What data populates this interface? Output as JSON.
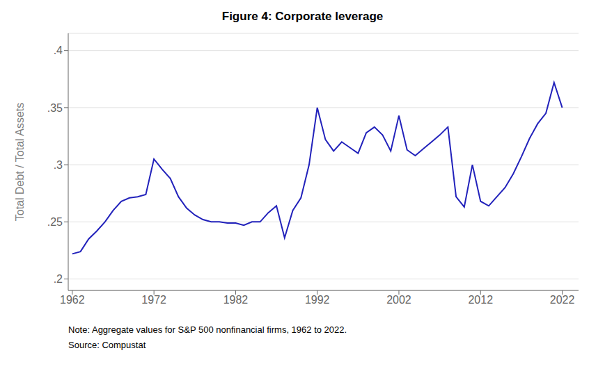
{
  "chart_data": {
    "type": "line",
    "title": "Figure 4: Corporate leverage",
    "y_label": "Total Debt / Total Assets",
    "annotations": [
      "Note: Aggregate values for S&P 500 nonfinancial firms, 1962 to 2022.",
      "Source: Compustat"
    ],
    "color": "#2222BB",
    "grid": true,
    "xlim": [
      1961.5,
      2024
    ],
    "ylim": [
      0.19,
      0.415
    ],
    "xticks": [
      1962,
      1972,
      1982,
      1992,
      2002,
      2012,
      2022
    ],
    "yticks": [
      {
        "value": 0.2,
        "label": ".2"
      },
      {
        "value": 0.25,
        "label": ".25"
      },
      {
        "value": 0.3,
        "label": ".3"
      },
      {
        "value": 0.35,
        "label": ".35"
      },
      {
        "value": 0.4,
        "label": ".4"
      }
    ],
    "x": [
      1962,
      1963,
      1964,
      1965,
      1966,
      1967,
      1968,
      1969,
      1970,
      1971,
      1972,
      1973,
      1974,
      1975,
      1976,
      1977,
      1978,
      1979,
      1980,
      1981,
      1982,
      1983,
      1984,
      1985,
      1986,
      1987,
      1988,
      1989,
      1990,
      1991,
      1992,
      1993,
      1994,
      1995,
      1996,
      1997,
      1998,
      1999,
      2000,
      2001,
      2002,
      2003,
      2004,
      2005,
      2006,
      2007,
      2008,
      2009,
      2010,
      2011,
      2012,
      2013,
      2014,
      2015,
      2016,
      2017,
      2018,
      2019,
      2020,
      2021,
      2022
    ],
    "values": [
      0.222,
      0.224,
      0.235,
      0.242,
      0.25,
      0.26,
      0.268,
      0.271,
      0.272,
      0.274,
      0.305,
      0.296,
      0.288,
      0.272,
      0.262,
      0.256,
      0.252,
      0.25,
      0.25,
      0.249,
      0.249,
      0.247,
      0.25,
      0.25,
      0.258,
      0.264,
      0.236,
      0.26,
      0.271,
      0.3,
      0.35,
      0.322,
      0.312,
      0.32,
      0.315,
      0.31,
      0.328,
      0.333,
      0.326,
      0.312,
      0.343,
      0.313,
      0.308,
      0.314,
      0.32,
      0.326,
      0.333,
      0.272,
      0.263,
      0.3,
      0.268,
      0.264,
      0.272,
      0.28,
      0.292,
      0.307,
      0.323,
      0.336,
      0.345,
      0.372,
      0.35
    ]
  }
}
